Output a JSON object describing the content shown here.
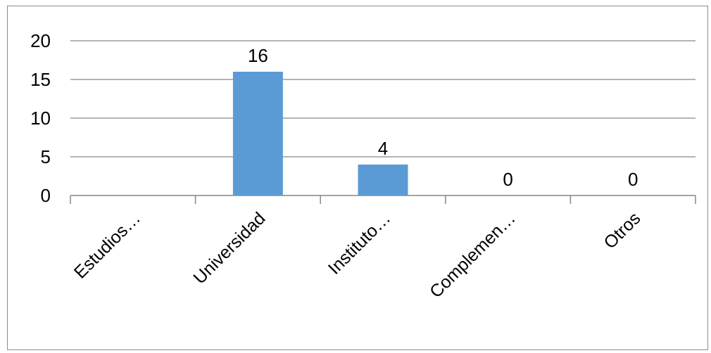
{
  "chart_data": {
    "type": "bar",
    "title": "",
    "xlabel": "",
    "ylabel": "",
    "categories": [
      "Estudios…",
      "Universidad",
      "Instituto…",
      "Complemen…",
      "Otros"
    ],
    "values": [
      0,
      16,
      4,
      0,
      0
    ],
    "data_labels": [
      "",
      "16",
      "4",
      "0",
      "0"
    ],
    "ylim": [
      0,
      20
    ],
    "yticks": [
      "0",
      "5",
      "10",
      "15",
      "20"
    ],
    "grid": true,
    "legend": "none",
    "colors": {
      "bar": "#5b9bd5",
      "grid": "#868686",
      "axis": "#868686",
      "frame": "#8c8c8c"
    }
  }
}
